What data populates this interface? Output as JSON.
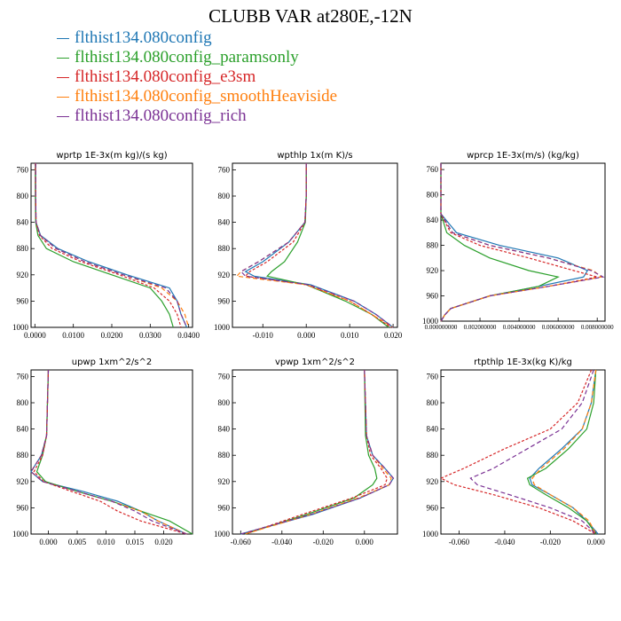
{
  "figure": {
    "title": "CLUBB VAR at280E,-12N",
    "legend": [
      {
        "name": "flthist134.080config",
        "color": "#1f77b4"
      },
      {
        "name": "flthist134.080config_paramsonly",
        "color": "#2ca02c"
      },
      {
        "name": "flthist134.080config_e3sm",
        "color": "#d62728"
      },
      {
        "name": "flthist134.080config_smoothHeaviside",
        "color": "#ff7f0e"
      },
      {
        "name": "flthist134.080config_rich",
        "color": "#7b3294"
      }
    ]
  },
  "chart_data": [
    {
      "type": "line",
      "title": "wprtp  1E-3x(m kg)/(s kg)",
      "xlim": [
        -0.001,
        0.041
      ],
      "ylim": [
        750,
        1000
      ],
      "xticks": [
        0.0,
        0.01,
        0.02,
        0.03,
        0.04
      ],
      "xtick_labels": [
        "0.0000",
        "0.0100",
        "0.0200",
        "0.0300",
        "0.0400"
      ],
      "yticks": [
        760,
        800,
        840,
        880,
        920,
        960,
        1000
      ],
      "y": [
        750,
        800,
        840,
        860,
        880,
        900,
        920,
        940,
        960,
        980,
        1000
      ],
      "series": [
        {
          "values": [
            0.0002,
            0.0002,
            0.0003,
            0.0015,
            0.006,
            0.014,
            0.024,
            0.035,
            0.037,
            0.038,
            0.0395
          ]
        },
        {
          "values": [
            0.0001,
            0.0001,
            0.0002,
            0.0008,
            0.003,
            0.01,
            0.02,
            0.03,
            0.033,
            0.035,
            0.036
          ]
        },
        {
          "values": [
            0.0001,
            0.0002,
            0.0003,
            0.0012,
            0.0045,
            0.012,
            0.022,
            0.031,
            0.035,
            0.037,
            0.038
          ]
        },
        {
          "values": [
            0.0002,
            0.0002,
            0.0003,
            0.0014,
            0.0055,
            0.013,
            0.023,
            0.033,
            0.037,
            0.039,
            0.04
          ]
        },
        {
          "values": [
            0.0002,
            0.0002,
            0.0003,
            0.0014,
            0.0055,
            0.013,
            0.023,
            0.034,
            0.037,
            0.038,
            0.0395
          ]
        }
      ]
    },
    {
      "type": "line",
      "title": "wpthlp  1x(m K)/s",
      "xlim": [
        -0.017,
        0.021
      ],
      "ylim": [
        750,
        1000
      ],
      "xticks": [
        -0.01,
        0.0,
        0.01,
        0.02
      ],
      "xtick_labels": [
        "-0.010",
        "0.000",
        "0.010",
        "0.020"
      ],
      "yticks": [
        760,
        800,
        840,
        880,
        920,
        960,
        1000
      ],
      "y": [
        750,
        800,
        840,
        870,
        900,
        915,
        922,
        935,
        960,
        980,
        1000
      ],
      "series": [
        {
          "values": [
            0.0,
            0.0,
            -0.0003,
            -0.004,
            -0.01,
            -0.014,
            -0.012,
            0.001,
            0.011,
            0.016,
            0.02
          ]
        },
        {
          "values": [
            0.0,
            0.0,
            -0.0002,
            -0.002,
            -0.005,
            -0.008,
            -0.009,
            0.0,
            0.009,
            0.015,
            0.019
          ]
        },
        {
          "values": [
            0.0,
            0.0,
            -0.0003,
            -0.003,
            -0.009,
            -0.013,
            -0.014,
            0.0,
            0.01,
            0.015,
            0.0195
          ]
        },
        {
          "values": [
            0.0,
            0.0,
            -0.0003,
            -0.004,
            -0.011,
            -0.015,
            -0.016,
            0.0,
            0.01,
            0.015,
            0.02
          ]
        },
        {
          "values": [
            0.0,
            0.0,
            -0.0003,
            -0.004,
            -0.011,
            -0.015,
            -0.014,
            0.0005,
            0.011,
            0.016,
            0.02
          ]
        }
      ]
    },
    {
      "type": "line",
      "title": "wprcp  1E-3x(m/s) (kg/kg)",
      "xlim": [
        0.0,
        0.0084
      ],
      "ylim": [
        750,
        1000
      ],
      "xticks": [
        0.0,
        0.002,
        0.004,
        0.006,
        0.008
      ],
      "xtick_labels": [
        "0.000000000",
        "0.002000000",
        "0.004000000",
        "0.006000000",
        "0.008000000"
      ],
      "yticks": [
        760,
        800,
        840,
        880,
        920,
        960,
        1000
      ],
      "y": [
        750,
        830,
        860,
        880,
        900,
        920,
        930,
        945,
        960,
        980,
        990,
        1000
      ],
      "series": [
        {
          "values": [
            0.0,
            0.0,
            0.0008,
            0.003,
            0.006,
            0.0075,
            0.0073,
            0.005,
            0.0025,
            0.0005,
            0.0002,
            0.0
          ]
        },
        {
          "values": [
            0.0,
            0.0,
            0.0003,
            0.0012,
            0.0025,
            0.0045,
            0.006,
            0.005,
            0.0025,
            0.0005,
            0.0002,
            0.0
          ]
        },
        {
          "values": [
            0.0,
            0.0,
            0.0005,
            0.002,
            0.0045,
            0.0068,
            0.008,
            0.0055,
            0.0025,
            0.0005,
            0.0002,
            0.0
          ]
        },
        {
          "values": [
            0.0,
            0.0,
            0.0006,
            0.0025,
            0.0055,
            0.0078,
            0.0082,
            0.0055,
            0.0025,
            0.0005,
            0.0002,
            0.0
          ]
        },
        {
          "values": [
            0.0,
            0.0,
            0.0006,
            0.0025,
            0.0055,
            0.0077,
            0.0083,
            0.0055,
            0.0025,
            0.0005,
            0.0002,
            0.0
          ]
        }
      ]
    },
    {
      "type": "line",
      "title": "upwp  1xm^2/s^2",
      "xlim": [
        -0.003,
        0.025
      ],
      "ylim": [
        750,
        1000
      ],
      "xticks": [
        0.0,
        0.005,
        0.01,
        0.015,
        0.02
      ],
      "xtick_labels": [
        "0.000",
        "0.005",
        "0.010",
        "0.015",
        "0.020"
      ],
      "yticks": [
        760,
        800,
        840,
        880,
        920,
        960,
        1000
      ],
      "y": [
        750,
        850,
        880,
        905,
        920,
        935,
        950,
        965,
        980,
        1000
      ],
      "series": [
        {
          "values": [
            0.0,
            -0.0003,
            -0.0012,
            -0.003,
            -0.001,
            0.006,
            0.012,
            0.016,
            0.019,
            0.024
          ]
        },
        {
          "values": [
            0.0,
            -0.0003,
            -0.001,
            -0.002,
            -0.0005,
            0.005,
            0.011,
            0.016,
            0.021,
            0.025
          ]
        },
        {
          "values": [
            0.0,
            -0.0003,
            -0.001,
            -0.0025,
            -0.0008,
            0.004,
            0.009,
            0.012,
            0.016,
            0.024
          ]
        },
        {
          "values": [
            0.0,
            -0.0003,
            -0.0012,
            -0.003,
            -0.001,
            0.005,
            0.011,
            0.016,
            0.019,
            0.024
          ]
        },
        {
          "values": [
            0.0,
            -0.0003,
            -0.0012,
            -0.003,
            -0.001,
            0.005,
            0.011,
            0.015,
            0.018,
            0.024
          ]
        }
      ]
    },
    {
      "type": "line",
      "title": "vpwp  1xm^2/s^2",
      "xlim": [
        -0.064,
        0.016
      ],
      "ylim": [
        750,
        1000
      ],
      "xticks": [
        -0.06,
        -0.04,
        -0.02,
        0.0
      ],
      "xtick_labels": [
        "-0.060",
        "-0.040",
        "-0.020",
        "0.000"
      ],
      "yticks": [
        760,
        800,
        840,
        880,
        920,
        960,
        1000
      ],
      "y": [
        750,
        850,
        880,
        900,
        915,
        925,
        945,
        970,
        1000
      ],
      "series": [
        {
          "values": [
            0.0,
            0.001,
            0.004,
            0.01,
            0.014,
            0.012,
            -0.002,
            -0.025,
            -0.06
          ]
        },
        {
          "values": [
            0.0,
            0.0005,
            0.002,
            0.005,
            0.006,
            0.004,
            -0.005,
            -0.028,
            -0.058
          ]
        },
        {
          "values": [
            0.0,
            0.001,
            0.003,
            0.008,
            0.011,
            0.01,
            -0.006,
            -0.03,
            -0.058
          ]
        },
        {
          "values": [
            0.0,
            0.001,
            0.004,
            0.009,
            0.013,
            0.012,
            -0.003,
            -0.026,
            -0.058
          ]
        },
        {
          "values": [
            0.0,
            0.001,
            0.004,
            0.01,
            0.014,
            0.012,
            -0.002,
            -0.026,
            -0.06
          ]
        }
      ]
    },
    {
      "type": "line",
      "title": "rtpthlp  1E-3x(kg K)/kg",
      "xlim": [
        -0.068,
        0.004
      ],
      "ylim": [
        750,
        1000
      ],
      "xticks": [
        -0.06,
        -0.04,
        -0.02,
        0.0
      ],
      "xtick_labels": [
        "-0.060",
        "-0.040",
        "-0.020",
        "0.000"
      ],
      "yticks": [
        760,
        800,
        840,
        880,
        920,
        960,
        1000
      ],
      "y": [
        750,
        800,
        840,
        870,
        900,
        915,
        925,
        940,
        960,
        980,
        1000
      ],
      "series": [
        {
          "values": [
            0.0,
            -0.002,
            -0.006,
            -0.015,
            -0.025,
            -0.029,
            -0.028,
            -0.02,
            -0.01,
            -0.004,
            0.001
          ]
        },
        {
          "values": [
            0.0,
            -0.001,
            -0.004,
            -0.012,
            -0.022,
            -0.03,
            -0.029,
            -0.022,
            -0.012,
            -0.004,
            0.0
          ]
        },
        {
          "values": [
            -0.002,
            -0.008,
            -0.02,
            -0.04,
            -0.058,
            -0.068,
            -0.062,
            -0.045,
            -0.025,
            -0.01,
            0.0
          ]
        },
        {
          "values": [
            0.0,
            -0.002,
            -0.006,
            -0.014,
            -0.024,
            -0.028,
            -0.027,
            -0.02,
            -0.01,
            -0.003,
            0.0
          ]
        },
        {
          "values": [
            -0.001,
            -0.006,
            -0.015,
            -0.03,
            -0.045,
            -0.055,
            -0.052,
            -0.038,
            -0.02,
            -0.006,
            0.0
          ]
        }
      ]
    }
  ]
}
